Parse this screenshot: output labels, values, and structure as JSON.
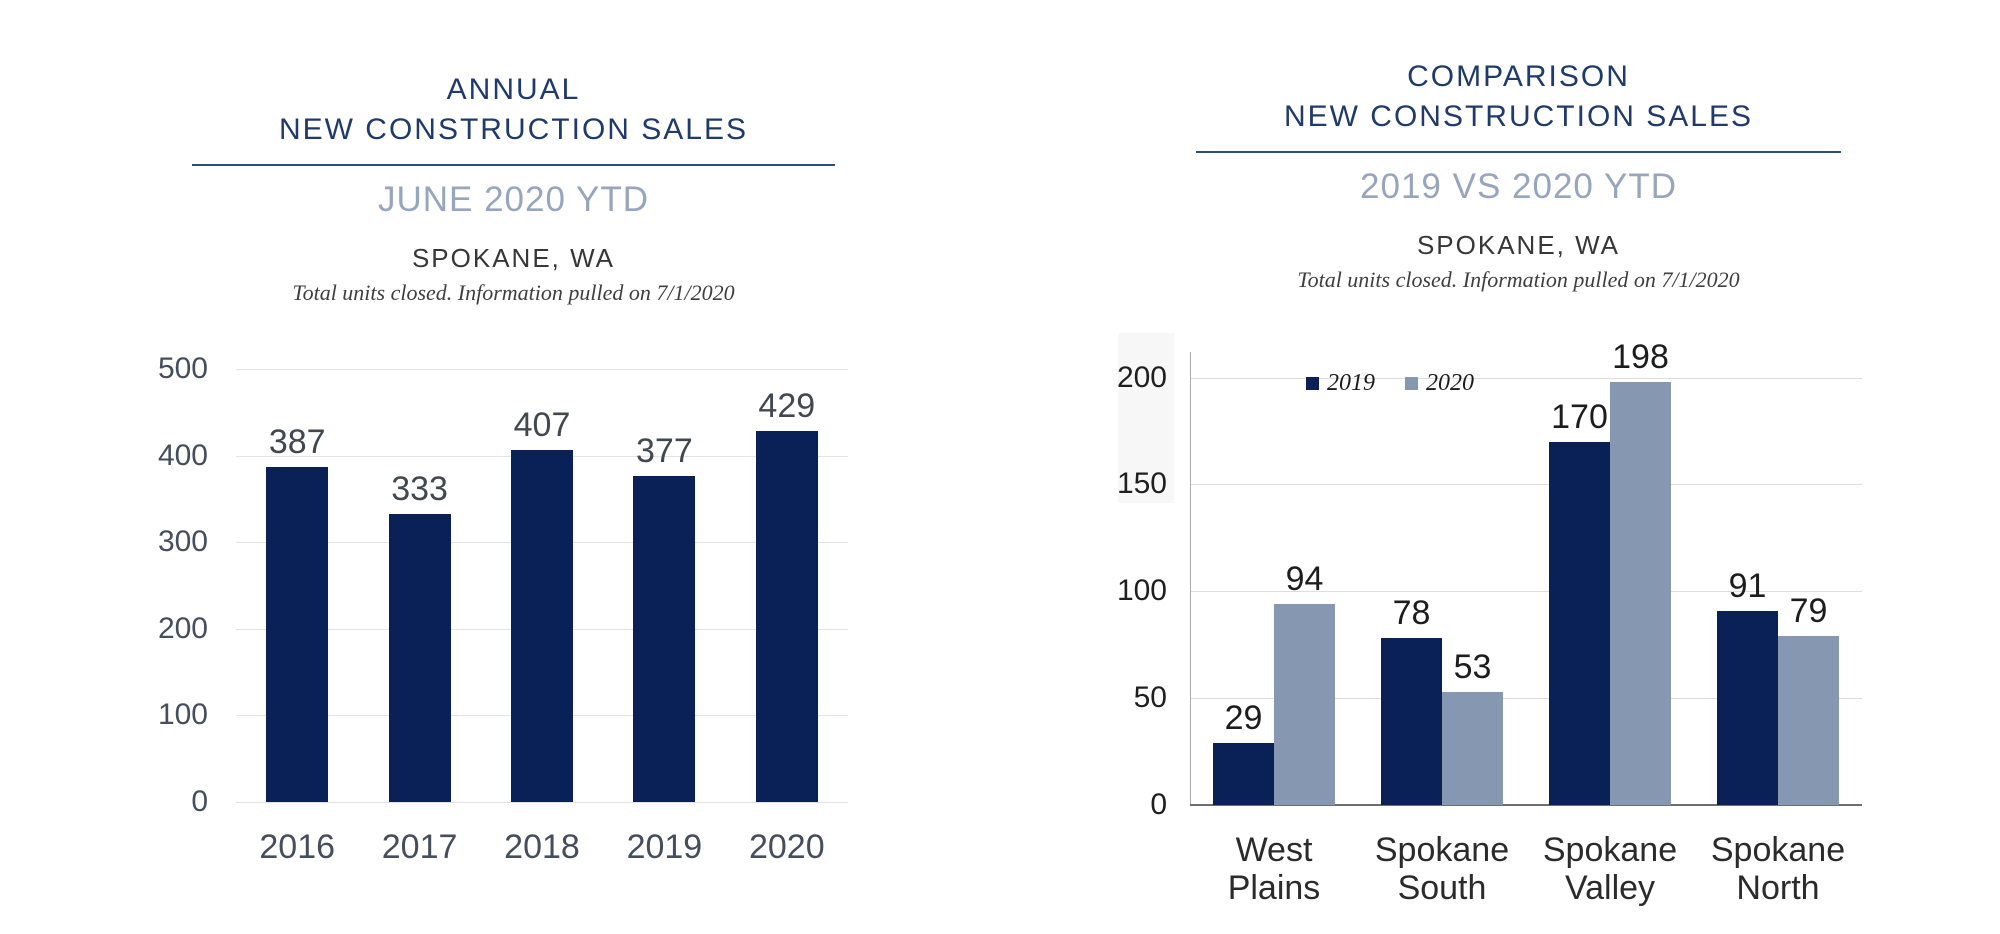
{
  "chart_data": [
    {
      "type": "bar",
      "header": {
        "title_line1": "ANNUAL",
        "title_line2": "NEW CONSTRUCTION SALES",
        "subtitle": "JUNE 2020 YTD",
        "location": "SPOKANE, WA",
        "note": "Total units closed.  Information pulled on 7/1/2020"
      },
      "categories": [
        "2016",
        "2017",
        "2018",
        "2019",
        "2020"
      ],
      "values": [
        387,
        333,
        407,
        377,
        429
      ],
      "ylabel": "",
      "xlabel": "",
      "ylim": [
        0,
        500
      ],
      "yticks": [
        0,
        100,
        200,
        300,
        400,
        500
      ],
      "grid": true,
      "legend": null,
      "data_labels": true,
      "colors": {
        "bar": "#0a2158",
        "gridline": "#e3e3e7",
        "axis_text": "#454e5c",
        "data_label": "#41484f",
        "title": "#1f3a6b",
        "subtitle": "#97a6bc",
        "rule": "#2c4d7e",
        "location": "#373737",
        "note": "#3f3f3f"
      }
    },
    {
      "type": "grouped-bar",
      "header": {
        "title_line1": "COMPARISON",
        "title_line2": "NEW CONSTRUCTION SALES",
        "subtitle": "2019 VS 2020 YTD",
        "location": "SPOKANE, WA",
        "note": "Total units closed.  Information pulled on 7/1/2020"
      },
      "categories": [
        "West Plains",
        "Spokane South",
        "Spokane Valley",
        "Spokane North"
      ],
      "category_lines": [
        [
          "West Plains"
        ],
        [
          "Spokane",
          "South"
        ],
        [
          "Spokane",
          "Valley"
        ],
        [
          "Spokane",
          "North"
        ]
      ],
      "series": [
        {
          "name": "2019",
          "color": "#0a2158",
          "values": [
            29,
            78,
            170,
            91
          ]
        },
        {
          "name": "2020",
          "color": "#8697b2",
          "values": [
            94,
            53,
            198,
            79
          ]
        }
      ],
      "ylabel": "",
      "xlabel": "",
      "ylim": [
        0,
        212
      ],
      "yticks": [
        0,
        50,
        100,
        150,
        200
      ],
      "grid": true,
      "legend_position": "top-inside",
      "data_labels": true,
      "colors": {
        "gridline": "#dddde2",
        "axis_text": "#1f1f1f",
        "x_axis_text": "#2b2b2b",
        "data_label": "#1d1d1d",
        "axis_line": "#ababab",
        "baseline": "#6e6e6e",
        "title": "#1f3a6b",
        "subtitle": "#97a6bc",
        "rule": "#2c4d7e",
        "location": "#373737",
        "note": "#3f3f3f",
        "legend_text": "#1b1b1b"
      }
    }
  ]
}
